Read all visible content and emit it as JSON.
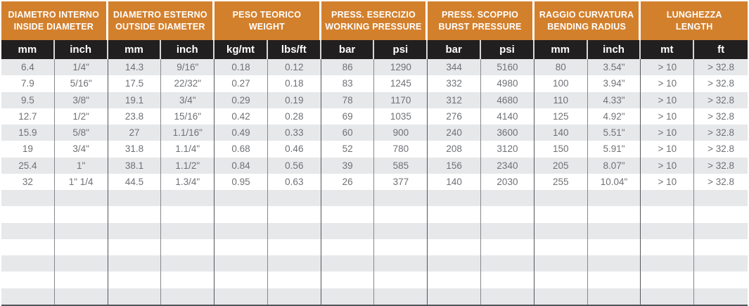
{
  "colors": {
    "header_orange": "#D3802D",
    "subheader_black": "#221F20",
    "row_alt_gray": "#E7E8EA",
    "data_text": "#6F7175",
    "divider_dark": "#54565C",
    "divider_light": "#85878D"
  },
  "table": {
    "groups": [
      {
        "title_it": "DIAMETRO INTERNO",
        "title_en": "INSIDE DIAMETER",
        "units": [
          "mm",
          "inch"
        ]
      },
      {
        "title_it": "DIAMETRO ESTERNO",
        "title_en": "OUTSIDE DIAMETER",
        "units": [
          "mm",
          "inch"
        ]
      },
      {
        "title_it": "PESO TEORICO",
        "title_en": "WEIGHT",
        "units": [
          "kg/mt",
          "lbs/ft"
        ]
      },
      {
        "title_it": "PRESS. ESERCIZIO",
        "title_en": "WORKING PRESSURE",
        "units": [
          "bar",
          "psi"
        ]
      },
      {
        "title_it": "PRESS. SCOPPIO",
        "title_en": "BURST PRESSURE",
        "units": [
          "bar",
          "psi"
        ]
      },
      {
        "title_it": "RAGGIO CURVATURA",
        "title_en": "BENDING RADIUS",
        "units": [
          "mm",
          "inch"
        ]
      },
      {
        "title_it": "LUNGHEZZA",
        "title_en": "LENGTH",
        "units": [
          "mt",
          "ft"
        ]
      }
    ],
    "rows": [
      [
        "6.4",
        "1/4\"",
        "14.3",
        "9/16\"",
        "0.18",
        "0.12",
        "86",
        "1290",
        "344",
        "5160",
        "80",
        "3.54\"",
        "> 10",
        "> 32.8"
      ],
      [
        "7.9",
        "5/16\"",
        "17.5",
        "22/32\"",
        "0.27",
        "0.18",
        "83",
        "1245",
        "332",
        "4980",
        "100",
        "3.94\"",
        "> 10",
        "> 32.8"
      ],
      [
        "9.5",
        "3/8\"",
        "19.1",
        "3/4\"",
        "0.29",
        "0.19",
        "78",
        "1170",
        "312",
        "4680",
        "110",
        "4.33\"",
        "> 10",
        "> 32.8"
      ],
      [
        "12.7",
        "1/2\"",
        "23.8",
        "15/16\"",
        "0.42",
        "0.28",
        "69",
        "1035",
        "276",
        "4140",
        "125",
        "4.92\"",
        "> 10",
        "> 32.8"
      ],
      [
        "15.9",
        "5/8\"",
        "27",
        "1.1/16\"",
        "0.49",
        "0.33",
        "60",
        "900",
        "240",
        "3600",
        "140",
        "5.51\"",
        "> 10",
        "> 32.8"
      ],
      [
        "19",
        "3/4\"",
        "31.8",
        "1.1/4\"",
        "0.68",
        "0.46",
        "52",
        "780",
        "208",
        "3120",
        "150",
        "5.91\"",
        "> 10",
        "> 32.8"
      ],
      [
        "25.4",
        "1\"",
        "38.1",
        "1.1/2\"",
        "0.84",
        "0.56",
        "39",
        "585",
        "156",
        "2340",
        "205",
        "8.07\"",
        "> 10",
        "> 32.8"
      ],
      [
        "32",
        "1\" 1/4",
        "44.5",
        "1.3/4\"",
        "0.95",
        "0.63",
        "26",
        "377",
        "140",
        "2030",
        "255",
        "10.04\"",
        "> 10",
        "> 32.8"
      ]
    ],
    "empty_row_count": 7,
    "first_row_shaded": true
  }
}
